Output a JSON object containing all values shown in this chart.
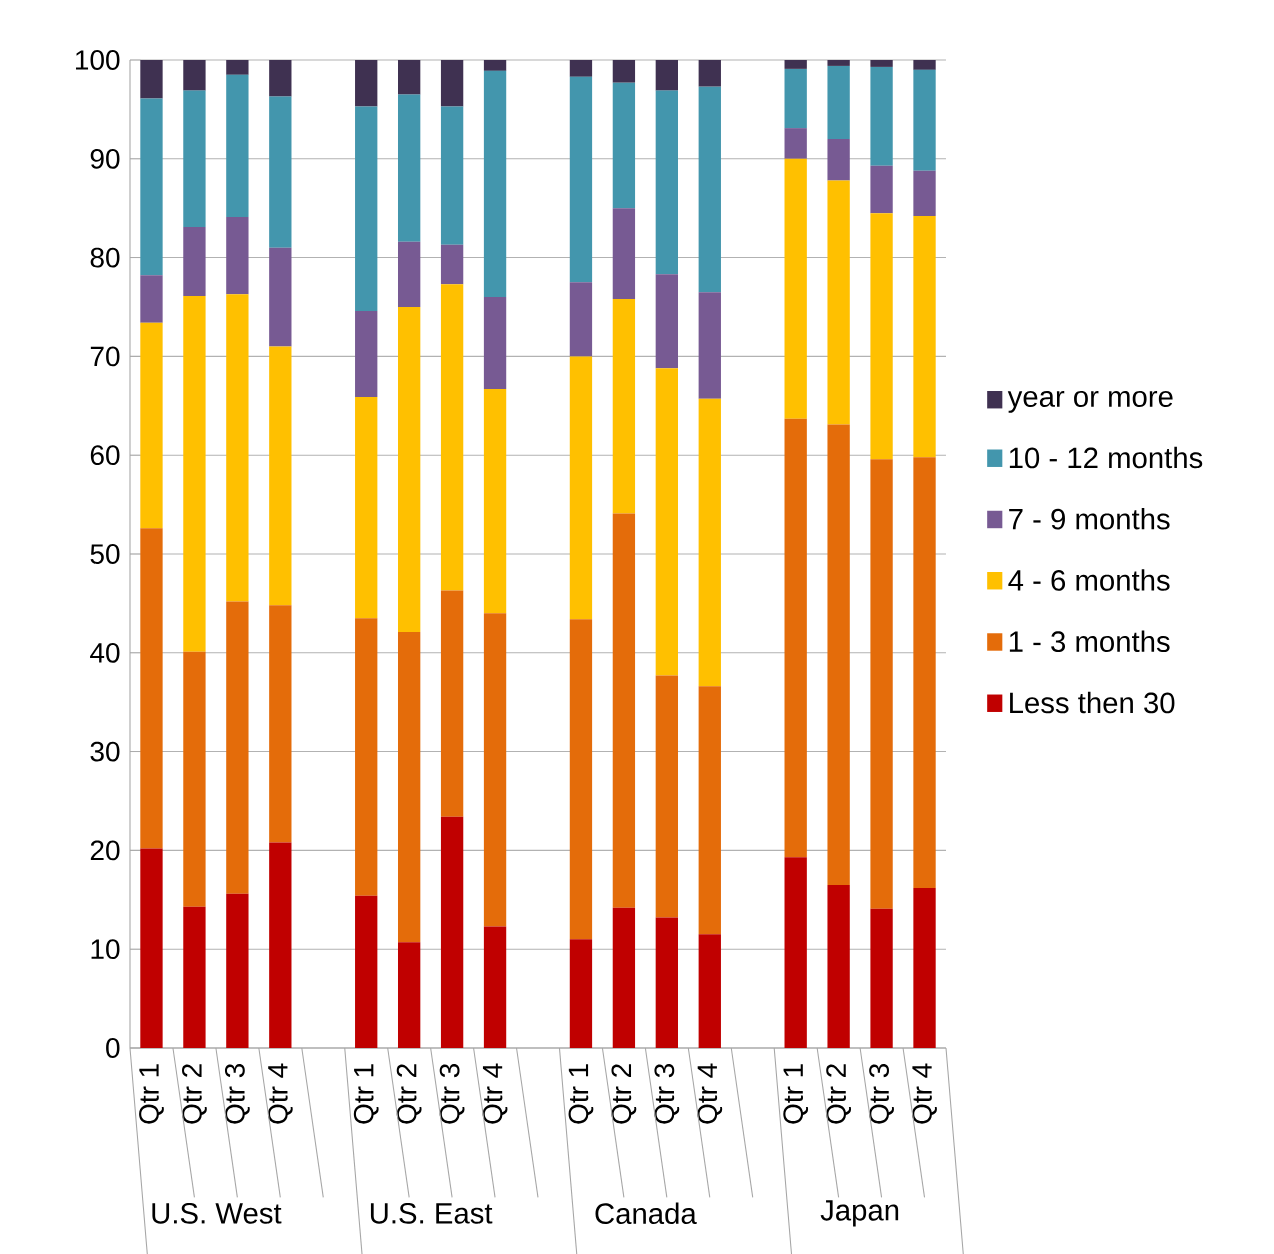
{
  "chart_data": {
    "type": "bar",
    "stacked": true,
    "categories": [
      "Qtr 1",
      "Qtr 2",
      "Qtr 3",
      "Qtr 4",
      null,
      "Qtr 1",
      "Qtr 2",
      "Qtr 3",
      "Qtr 4",
      null,
      "Qtr 1",
      "Qtr 2",
      "Qtr 3",
      "Qtr 4",
      null,
      "Qtr 1",
      "Qtr 2",
      "Qtr 3",
      "Qtr 4"
    ],
    "series": [
      {
        "name": "Less then 30",
        "color": "#c00000",
        "values": [
          20.2,
          14.3,
          15.6,
          20.8,
          null,
          15.4,
          10.7,
          23.4,
          12.3,
          null,
          11.0,
          14.2,
          13.2,
          11.5,
          null,
          19.3,
          16.5,
          14.1,
          16.2
        ]
      },
      {
        "name": "1 - 3 months",
        "color": "#e46c0a",
        "values": [
          32.4,
          25.8,
          29.6,
          24.0,
          null,
          28.1,
          31.4,
          22.9,
          31.7,
          null,
          32.4,
          39.9,
          24.5,
          25.1,
          null,
          44.4,
          46.6,
          45.5,
          43.6
        ]
      },
      {
        "name": "4 - 6 months",
        "color": "#ffc000",
        "values": [
          20.8,
          36.0,
          31.1,
          26.2,
          null,
          22.4,
          32.9,
          31.0,
          22.7,
          null,
          26.6,
          21.7,
          31.1,
          29.1,
          null,
          26.3,
          24.7,
          24.9,
          24.4
        ]
      },
      {
        "name": "7 - 9 months",
        "color": "#775a93",
        "values": [
          4.8,
          7.0,
          7.8,
          10.0,
          null,
          8.7,
          6.6,
          4.0,
          9.3,
          null,
          7.5,
          9.2,
          9.5,
          10.8,
          null,
          3.1,
          4.2,
          4.8,
          4.6
        ]
      },
      {
        "name": "10 - 12 months",
        "color": "#4396ad",
        "values": [
          17.9,
          13.8,
          14.4,
          15.3,
          null,
          20.7,
          14.9,
          14.0,
          22.9,
          null,
          20.8,
          12.7,
          18.6,
          20.8,
          null,
          6.0,
          7.4,
          10.0,
          10.2
        ]
      },
      {
        "name": "year or more",
        "color": "#3f3151",
        "values": [
          3.9,
          3.1,
          1.5,
          3.7,
          null,
          4.7,
          3.5,
          4.7,
          1.1,
          null,
          1.7,
          2.3,
          3.1,
          2.7,
          null,
          0.9,
          0.6,
          0.7,
          1.0
        ]
      }
    ],
    "annotations": [
      "U.S. West",
      "U.S. East",
      "Canada",
      "Japan"
    ],
    "ylim": [
      0,
      100
    ],
    "yticks": [
      0,
      10,
      20,
      30,
      40,
      50,
      60,
      70,
      80,
      90,
      100
    ],
    "grid": "y",
    "legend": "right"
  }
}
